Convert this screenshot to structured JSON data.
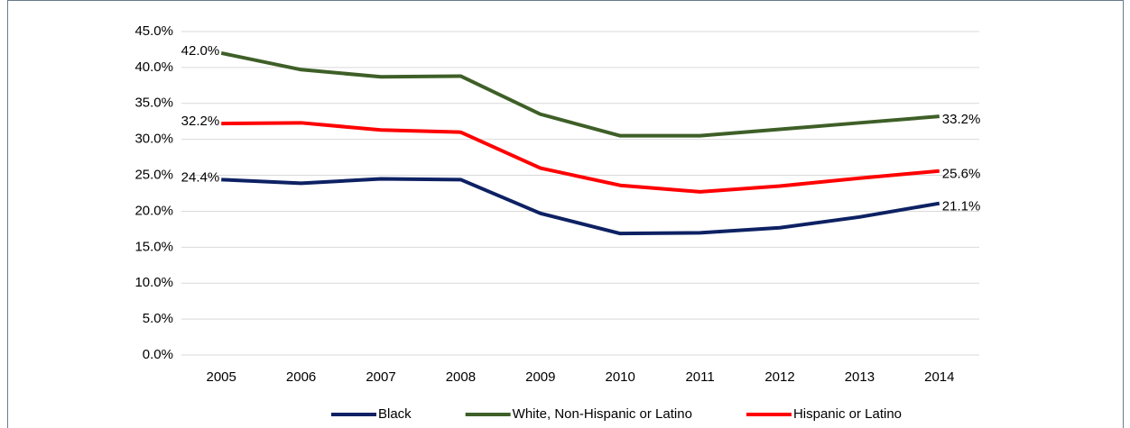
{
  "chart_data": {
    "type": "line",
    "categories": [
      "2005",
      "2006",
      "2007",
      "2008",
      "2009",
      "2010",
      "2011",
      "2012",
      "2013",
      "2014"
    ],
    "series": [
      {
        "name": "Black",
        "color": "#0d2163",
        "values": [
          24.4,
          23.9,
          24.5,
          24.4,
          19.7,
          16.9,
          17.0,
          17.7,
          19.2,
          21.1
        ],
        "value_labels": [
          "24.4%",
          null,
          null,
          null,
          null,
          null,
          null,
          null,
          null,
          "21.1%"
        ]
      },
      {
        "name": "White, Non-Hispanic or Latino",
        "color": "#3e5f27",
        "values": [
          42.0,
          39.7,
          38.7,
          38.8,
          33.5,
          30.5,
          30.5,
          31.4,
          32.3,
          33.2
        ],
        "value_labels": [
          "42.0%",
          null,
          null,
          null,
          null,
          null,
          null,
          null,
          null,
          "33.2%"
        ]
      },
      {
        "name": "Hispanic or Latino",
        "color": "#ff0000",
        "values": [
          32.2,
          32.3,
          31.3,
          31.0,
          26.0,
          23.6,
          22.7,
          23.5,
          24.6,
          25.6
        ],
        "value_labels": [
          "32.2%",
          null,
          null,
          null,
          null,
          null,
          null,
          null,
          null,
          "25.6%"
        ]
      }
    ],
    "ylim": [
      0,
      45
    ],
    "yticks": [
      {
        "value": 0,
        "label": "0.0%"
      },
      {
        "value": 5,
        "label": "5.0%"
      },
      {
        "value": 10,
        "label": "10.0%"
      },
      {
        "value": 15,
        "label": "15.0%"
      },
      {
        "value": 20,
        "label": "20.0%"
      },
      {
        "value": 25,
        "label": "25.0%"
      },
      {
        "value": 30,
        "label": "30.0%"
      },
      {
        "value": 35,
        "label": "35.0%"
      },
      {
        "value": 40,
        "label": "40.0%"
      },
      {
        "value": 45,
        "label": "45.0%"
      }
    ],
    "grid": true,
    "legend": "bottom"
  }
}
